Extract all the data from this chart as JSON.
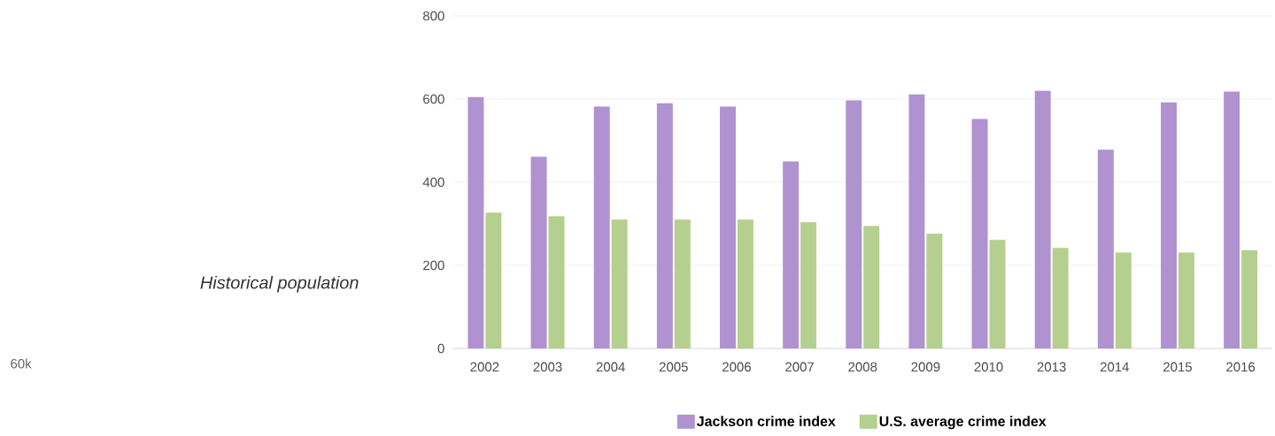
{
  "chart_data": {
    "type": "bar",
    "categories": [
      "2002",
      "2003",
      "2004",
      "2005",
      "2006",
      "2007",
      "2008",
      "2009",
      "2010",
      "2013",
      "2014",
      "2015",
      "2016"
    ],
    "series": [
      {
        "name": "Jackson crime index",
        "color": "#b092d0",
        "values": [
          605,
          461,
          582,
          590,
          582,
          450,
          597,
          611,
          552,
          620,
          478,
          592,
          618
        ]
      },
      {
        "name": "U.S. average crime index",
        "color": "#b5cf8e",
        "values": [
          327,
          318,
          310,
          310,
          310,
          304,
          295,
          276,
          261,
          242,
          231,
          231,
          236
        ]
      }
    ],
    "ylim": [
      0,
      800
    ],
    "yticks": [
      0,
      200,
      400,
      600,
      800
    ],
    "grid": "y",
    "legend": "bottom",
    "annotations": [
      "Historical population",
      "60k"
    ]
  }
}
